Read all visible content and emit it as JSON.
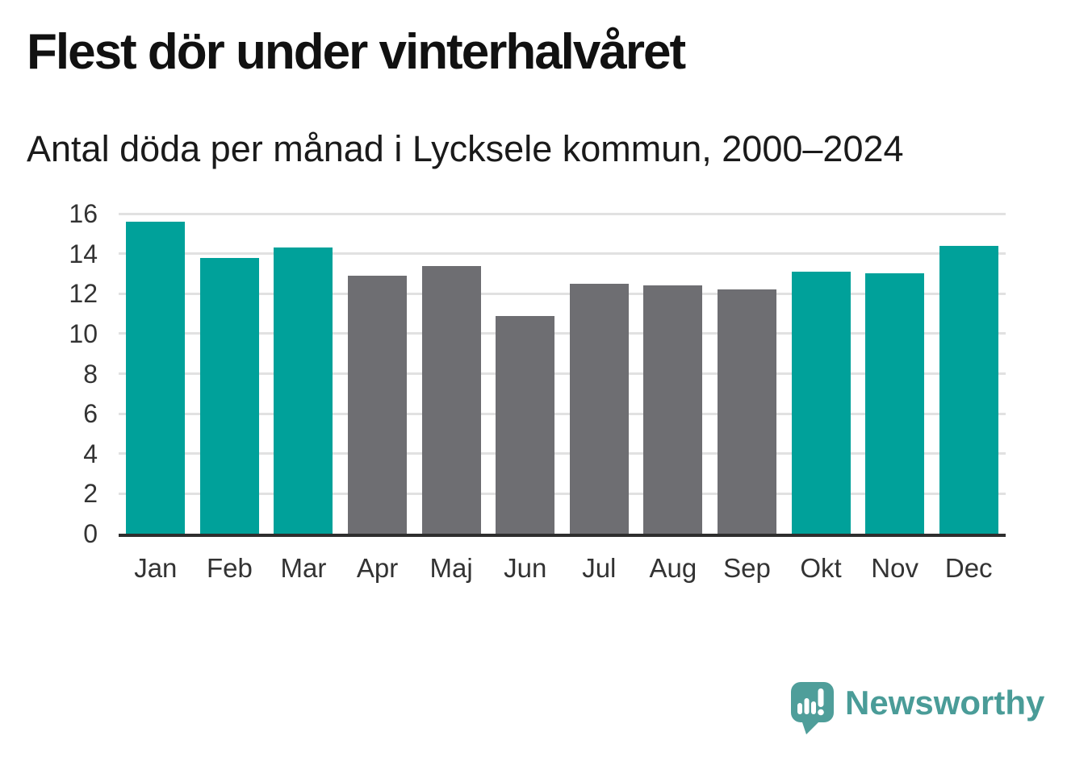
{
  "chart_data": {
    "type": "bar",
    "title": "Flest dör under vinterhalvåret",
    "subtitle": "Antal döda per månad i Lycksele kommun, 2000–2024",
    "categories": [
      "Jan",
      "Feb",
      "Mar",
      "Apr",
      "Maj",
      "Jun",
      "Jul",
      "Aug",
      "Sep",
      "Okt",
      "Nov",
      "Dec"
    ],
    "values": [
      15.6,
      13.8,
      14.3,
      12.9,
      13.4,
      10.9,
      12.5,
      12.4,
      12.2,
      13.1,
      13.0,
      14.4
    ],
    "bar_colors": [
      "teal",
      "teal",
      "teal",
      "gray",
      "gray",
      "gray",
      "gray",
      "gray",
      "gray",
      "teal",
      "teal",
      "teal"
    ],
    "colors": {
      "teal": "#00a19a",
      "gray": "#6e6e72",
      "gridline": "#e1e1e1",
      "axis": "#2e2e2e",
      "tick_text": "#333333"
    },
    "xlabel": "",
    "ylabel": "",
    "ylim": [
      0,
      16
    ],
    "yticks": [
      0,
      2,
      4,
      6,
      8,
      10,
      12,
      14,
      16
    ],
    "grid": true,
    "legend": false
  },
  "branding": {
    "name": "Newsworthy",
    "color": "#4a9c98",
    "icon_color": "#4f9e9a",
    "logo_icon": "newsworthy-speech-bubble-barchart-icon"
  }
}
